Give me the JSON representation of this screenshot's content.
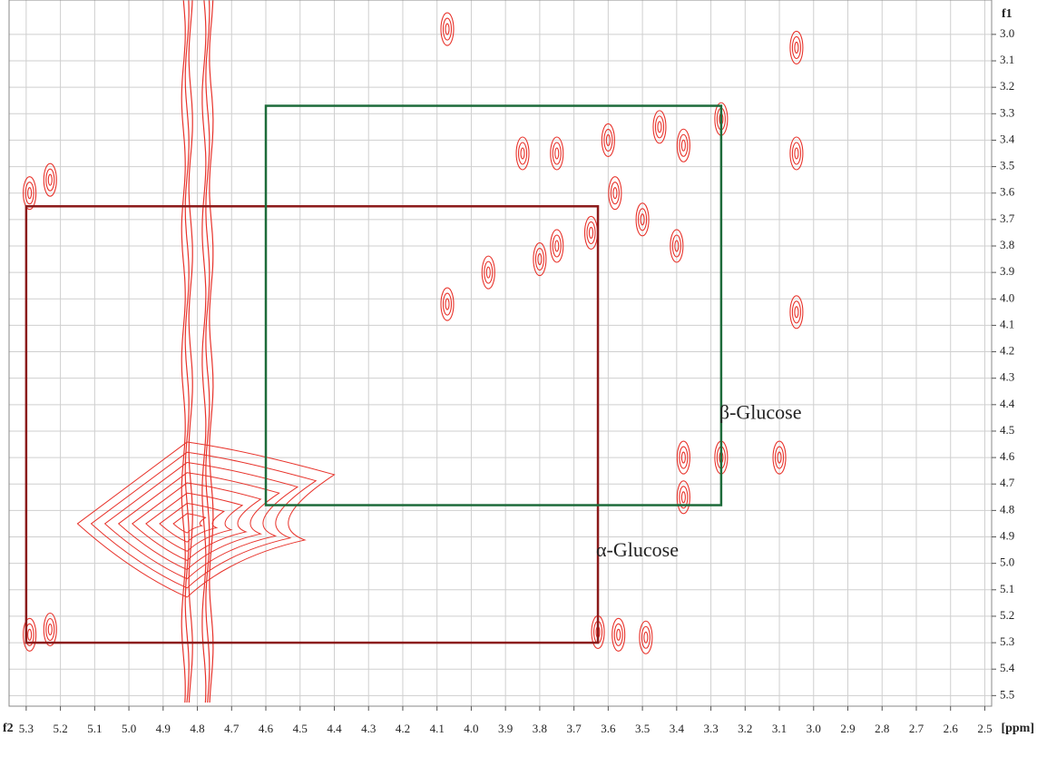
{
  "chart_data": {
    "type": "contour",
    "x_label": "f2",
    "x_unit_label": "[ppm]",
    "y_label": "f1",
    "xlim": [
      5.35,
      2.48
    ],
    "ylim": [
      2.87,
      5.54
    ],
    "xticks": [
      5.3,
      5.2,
      5.1,
      {
        "value": 5.0,
        "label": "5.0"
      },
      4.9,
      4.8,
      4.7,
      4.6,
      4.5,
      4.4,
      4.3,
      4.2,
      4.1,
      {
        "value": 4.0,
        "label": "4.0"
      },
      3.9,
      3.8,
      3.7,
      3.6,
      3.5,
      3.4,
      3.3,
      3.2,
      3.1,
      {
        "value": 3.0,
        "label": "3.0"
      },
      2.9,
      2.8,
      2.7,
      2.6,
      2.5
    ],
    "yticks": [
      {
        "value": 3.0,
        "label": "3.0"
      },
      3.1,
      3.2,
      3.3,
      3.4,
      3.5,
      3.6,
      3.7,
      3.8,
      3.9,
      {
        "value": 4.0,
        "label": "4.0"
      },
      4.1,
      4.2,
      4.3,
      4.4,
      4.5,
      4.6,
      4.7,
      4.8,
      4.9,
      {
        "value": 5.0,
        "label": "5.0"
      },
      5.1,
      5.2,
      5.3,
      5.4,
      5.5
    ],
    "grid": true,
    "color": "#e8322a",
    "peaks": {
      "x": [
        3.05,
        4.07,
        5.29,
        5.23,
        3.05,
        3.05,
        4.07,
        5.29,
        5.23,
        3.63,
        3.57,
        3.85,
        3.75,
        3.6,
        3.45,
        3.38,
        3.8,
        3.75,
        3.65,
        3.5,
        3.4,
        3.95,
        3.58,
        3.27,
        3.27,
        3.38,
        3.38,
        3.1,
        3.49
      ],
      "y": [
        3.05,
        2.98,
        3.6,
        3.55,
        3.45,
        4.05,
        4.02,
        5.27,
        5.25,
        5.26,
        5.27,
        3.45,
        3.45,
        3.4,
        3.35,
        3.42,
        3.85,
        3.8,
        3.75,
        3.7,
        3.8,
        3.9,
        3.6,
        3.32,
        4.6,
        4.6,
        4.75,
        4.6,
        5.28
      ]
    },
    "water": {
      "x": [
        4.83,
        4.77
      ]
    },
    "ridge": {
      "x0": 5.15,
      "x1": 4.4,
      "y": 4.85
    },
    "annotations": [
      {
        "label": "α-Glucose",
        "x0": 5.3,
        "x1": 3.63,
        "y0": 3.65,
        "y1": 5.3,
        "color": "#8b1a1a"
      },
      {
        "label": "β-Glucose",
        "x0": 4.6,
        "x1": 3.27,
        "y0": 3.27,
        "y1": 4.78,
        "color": "#1d6b3a"
      }
    ]
  }
}
